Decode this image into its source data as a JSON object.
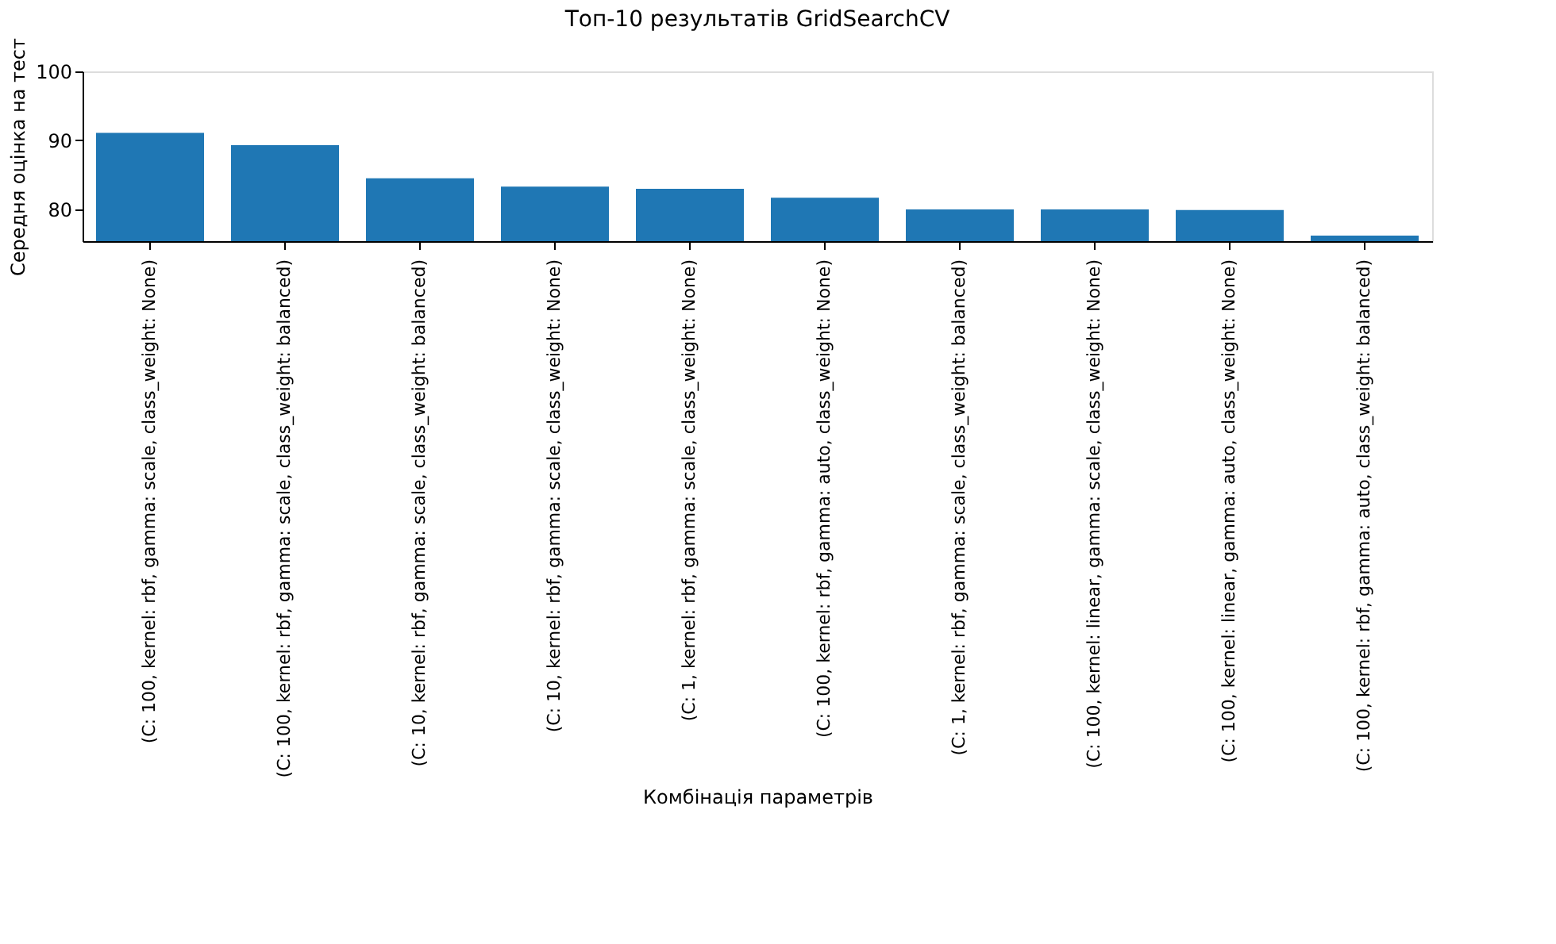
{
  "chart_data": {
    "type": "bar",
    "title": "Топ-10 результатів GridSearchCV",
    "xlabel": "Комбінація параметрів",
    "ylabel": "Середня оцінка на тест",
    "categories": [
      "(C: 100, kernel: rbf, gamma: scale, class_weight: None)",
      "(C: 100, kernel: rbf, gamma: scale, class_weight: balanced)",
      "(C: 10, kernel: rbf, gamma: scale, class_weight: balanced)",
      "(C: 10, kernel: rbf, gamma: scale, class_weight: None)",
      "(C: 1, kernel: rbf, gamma: scale, class_weight: None)",
      "(C: 100, kernel: rbf, gamma: auto, class_weight: None)",
      "(C: 1, kernel: rbf, gamma: scale, class_weight: balanced)",
      "(C: 100, kernel: linear, gamma: scale, class_weight: None)",
      "(C: 100, kernel: linear, gamma: auto, class_weight: None)",
      "(C: 100, kernel: rbf, gamma: auto, class_weight: balanced)"
    ],
    "values": [
      91.1,
      89.3,
      84.5,
      83.3,
      83.0,
      81.7,
      80.0,
      80.0,
      79.9,
      76.2
    ],
    "color": "#1f77b4",
    "ylim": [
      75.4,
      100
    ],
    "yticks": [
      80,
      90,
      100
    ],
    "grid": false
  }
}
